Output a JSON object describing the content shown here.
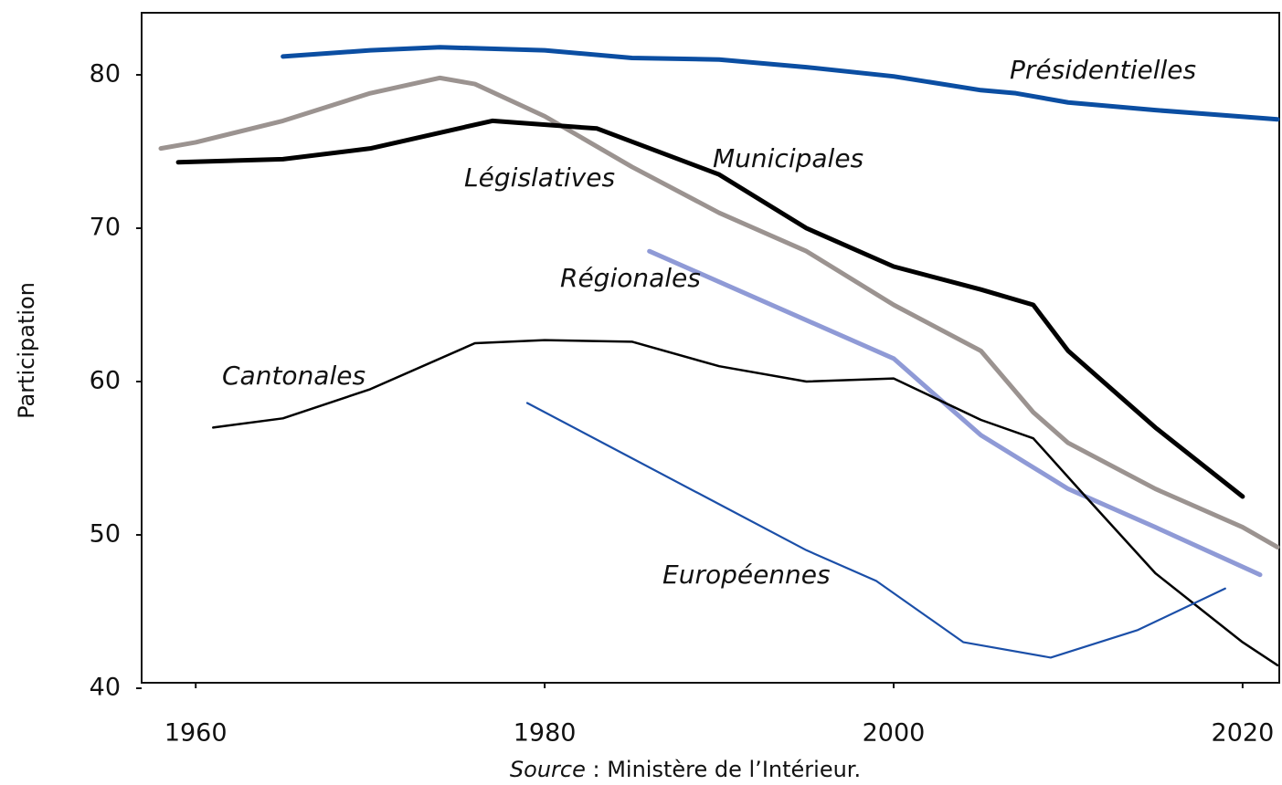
{
  "chart_data": {
    "type": "line",
    "y_label": "Participation",
    "source_label": "Source",
    "source_text": " : Ministère de l’Intérieur.",
    "xlim": [
      1956.9,
      2022.1
    ],
    "ylim": [
      40,
      84
    ],
    "xticks": [
      1960,
      1980,
      2000,
      2020
    ],
    "yticks": [
      40,
      50,
      60,
      70,
      80
    ],
    "series": [
      {
        "name": "Présidentielles",
        "color": "#0b4ea2",
        "x": [
          1965,
          1970,
          1974,
          1980,
          1985,
          1990,
          1995,
          2000,
          2005,
          2007,
          2010,
          2015,
          2022
        ],
        "values": [
          81.2,
          81.6,
          81.8,
          81.6,
          81.1,
          81.0,
          80.5,
          79.9,
          79.0,
          78.8,
          78.2,
          77.7,
          77.1
        ]
      },
      {
        "name": "Législatives",
        "color": "#9b9390",
        "x": [
          1958,
          1960,
          1965,
          1970,
          1974,
          1976,
          1980,
          1985,
          1990,
          1995,
          2000,
          2005,
          2008,
          2010,
          2015,
          2020,
          2022
        ],
        "values": [
          75.2,
          75.6,
          77.0,
          78.8,
          79.8,
          79.4,
          77.3,
          74.0,
          71.0,
          68.5,
          65.0,
          62.0,
          58.0,
          56.0,
          53.0,
          50.5,
          49.2
        ]
      },
      {
        "name": "Municipales",
        "color": "#000000",
        "x": [
          1959,
          1965,
          1970,
          1977,
          1983,
          1990,
          1995,
          2000,
          2005,
          2008,
          2010,
          2015,
          2020
        ],
        "values": [
          74.3,
          74.5,
          75.2,
          77.0,
          76.5,
          73.5,
          70.0,
          67.5,
          66.0,
          65.0,
          62.0,
          57.0,
          52.5
        ]
      },
      {
        "name": "Régionales",
        "color": "#8f9ad6",
        "x": [
          1986,
          1990,
          1995,
          2000,
          2005,
          2010,
          2015,
          2021
        ],
        "values": [
          68.5,
          66.5,
          64.0,
          61.5,
          56.5,
          53.0,
          50.5,
          47.4
        ]
      },
      {
        "name": "Cantonales",
        "color": "#000000",
        "x": [
          1961,
          1965,
          1970,
          1976,
          1980,
          1985,
          1990,
          1995,
          2000,
          2005,
          2008,
          2011,
          2015,
          2020,
          2022
        ],
        "values": [
          57.0,
          57.6,
          59.5,
          62.5,
          62.7,
          62.6,
          61.0,
          60.0,
          60.2,
          57.5,
          56.3,
          52.5,
          47.5,
          43.0,
          41.5
        ]
      },
      {
        "name": "Européennes",
        "color": "#1b4fa8",
        "x": [
          1979,
          1985,
          1990,
          1995,
          1999,
          2004,
          2009,
          2014,
          2019
        ],
        "values": [
          58.6,
          55.0,
          52.0,
          49.0,
          47.0,
          43.0,
          42.0,
          43.8,
          46.5
        ]
      }
    ]
  }
}
